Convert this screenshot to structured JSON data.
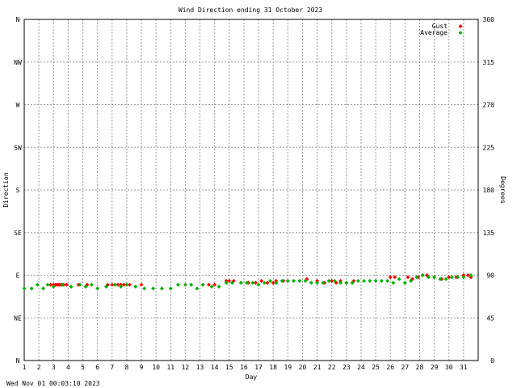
{
  "footer_timestamp": "Wed Nov 01 00:03:10 2023",
  "chart_data": {
    "type": "scatter",
    "title": "Wind Direction ending 31 October 2023",
    "xlabel": "Day",
    "ylabel_left": "Direction",
    "ylabel_right": "Degrees",
    "xlim": [
      1,
      32
    ],
    "ylim": [
      0,
      360
    ],
    "grid": true,
    "legend_position": "top-right",
    "x_ticks": [
      "1",
      "2",
      "3",
      "4",
      "5",
      "6",
      "7",
      "8",
      "9",
      "10",
      "11",
      "12",
      "13",
      "14",
      "15",
      "16",
      "17",
      "18",
      "19",
      "20",
      "21",
      "22",
      "23",
      "24",
      "25",
      "26",
      "27",
      "28",
      "29",
      "30",
      "31"
    ],
    "y_ticks_left": [
      {
        "value": 0,
        "label": "N"
      },
      {
        "value": 45,
        "label": "NE"
      },
      {
        "value": 90,
        "label": "E"
      },
      {
        "value": 135,
        "label": "SE"
      },
      {
        "value": 180,
        "label": "S"
      },
      {
        "value": 225,
        "label": "SW"
      },
      {
        "value": 270,
        "label": "W"
      },
      {
        "value": 315,
        "label": "NW"
      },
      {
        "value": 360,
        "label": "N"
      }
    ],
    "y_ticks_right": [
      {
        "value": 0,
        "label": "0"
      },
      {
        "value": 45,
        "label": "45"
      },
      {
        "value": 90,
        "label": "90"
      },
      {
        "value": 135,
        "label": "135"
      },
      {
        "value": 180,
        "label": "180"
      },
      {
        "value": 225,
        "label": "225"
      },
      {
        "value": 270,
        "label": "270"
      },
      {
        "value": 315,
        "label": "315"
      },
      {
        "value": 360,
        "label": "360"
      }
    ],
    "series": [
      {
        "name": "Gust",
        "color": "#ff0000",
        "points": [
          [
            2.8,
            80
          ],
          [
            3.0,
            80
          ],
          [
            3.1,
            80
          ],
          [
            3.2,
            80
          ],
          [
            3.3,
            80
          ],
          [
            3.4,
            80
          ],
          [
            3.5,
            80
          ],
          [
            3.6,
            80
          ],
          [
            3.7,
            80
          ],
          [
            3.9,
            80
          ],
          [
            4.7,
            80
          ],
          [
            5.3,
            80
          ],
          [
            6.7,
            80
          ],
          [
            7.0,
            80
          ],
          [
            7.2,
            80
          ],
          [
            7.4,
            80
          ],
          [
            7.6,
            80
          ],
          [
            7.8,
            80
          ],
          [
            8.0,
            80
          ],
          [
            8.2,
            80
          ],
          [
            9.0,
            80
          ],
          [
            13.2,
            80
          ],
          [
            13.6,
            80
          ],
          [
            14.0,
            80
          ],
          [
            14.8,
            84
          ],
          [
            15.0,
            84
          ],
          [
            15.3,
            84
          ],
          [
            16.3,
            82
          ],
          [
            16.8,
            82
          ],
          [
            17.2,
            84
          ],
          [
            17.6,
            82
          ],
          [
            18.0,
            82
          ],
          [
            18.2,
            84
          ],
          [
            18.7,
            84
          ],
          [
            19.0,
            84
          ],
          [
            20.3,
            86
          ],
          [
            21.0,
            84
          ],
          [
            21.5,
            82
          ],
          [
            22.0,
            84
          ],
          [
            22.3,
            82
          ],
          [
            22.6,
            84
          ],
          [
            23.0,
            82
          ],
          [
            23.5,
            84
          ],
          [
            26.0,
            88
          ],
          [
            26.3,
            88
          ],
          [
            27.2,
            88
          ],
          [
            27.5,
            86
          ],
          [
            27.9,
            88
          ],
          [
            28.2,
            90
          ],
          [
            28.5,
            90
          ],
          [
            29.0,
            88
          ],
          [
            29.5,
            86
          ],
          [
            30.0,
            88
          ],
          [
            30.5,
            88
          ],
          [
            31.0,
            90
          ],
          [
            31.3,
            90
          ],
          [
            31.5,
            88
          ]
        ]
      },
      {
        "name": "Average",
        "color": "#00b400",
        "points": [
          [
            1.0,
            76
          ],
          [
            1.5,
            76
          ],
          [
            1.9,
            80
          ],
          [
            2.3,
            76
          ],
          [
            2.6,
            80
          ],
          [
            3.0,
            78
          ],
          [
            3.6,
            80
          ],
          [
            4.2,
            78
          ],
          [
            4.8,
            80
          ],
          [
            5.2,
            78
          ],
          [
            5.6,
            80
          ],
          [
            6.0,
            76
          ],
          [
            6.6,
            78
          ],
          [
            7.2,
            80
          ],
          [
            7.6,
            78
          ],
          [
            8.0,
            80
          ],
          [
            8.6,
            78
          ],
          [
            9.2,
            76
          ],
          [
            9.8,
            76
          ],
          [
            10.4,
            76
          ],
          [
            11.0,
            76
          ],
          [
            11.5,
            80
          ],
          [
            12.0,
            80
          ],
          [
            12.4,
            80
          ],
          [
            12.8,
            76
          ],
          [
            13.2,
            80
          ],
          [
            13.8,
            78
          ],
          [
            14.3,
            78
          ],
          [
            14.8,
            82
          ],
          [
            15.2,
            82
          ],
          [
            15.8,
            82
          ],
          [
            16.2,
            82
          ],
          [
            16.6,
            82
          ],
          [
            17.0,
            80
          ],
          [
            17.4,
            82
          ],
          [
            17.8,
            84
          ],
          [
            18.2,
            82
          ],
          [
            18.6,
            84
          ],
          [
            19.0,
            84
          ],
          [
            19.4,
            84
          ],
          [
            19.8,
            84
          ],
          [
            20.2,
            84
          ],
          [
            20.6,
            82
          ],
          [
            21.0,
            82
          ],
          [
            21.4,
            82
          ],
          [
            21.8,
            84
          ],
          [
            22.2,
            84
          ],
          [
            22.6,
            82
          ],
          [
            23.0,
            82
          ],
          [
            23.4,
            82
          ],
          [
            23.8,
            84
          ],
          [
            24.2,
            84
          ],
          [
            24.6,
            84
          ],
          [
            25.0,
            84
          ],
          [
            25.4,
            84
          ],
          [
            25.8,
            84
          ],
          [
            26.2,
            82
          ],
          [
            26.6,
            86
          ],
          [
            27.0,
            82
          ],
          [
            27.4,
            84
          ],
          [
            27.8,
            88
          ],
          [
            28.2,
            90
          ],
          [
            28.6,
            88
          ],
          [
            29.0,
            88
          ],
          [
            29.4,
            86
          ],
          [
            29.8,
            86
          ],
          [
            30.2,
            88
          ],
          [
            30.6,
            88
          ],
          [
            31.0,
            88
          ],
          [
            31.5,
            90
          ]
        ]
      }
    ]
  }
}
